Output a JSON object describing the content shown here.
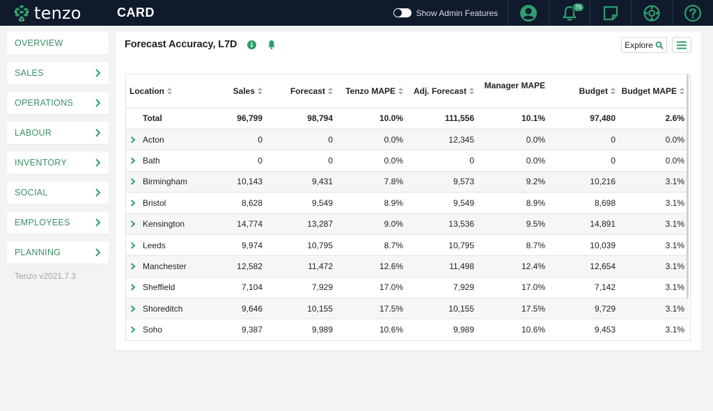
{
  "app": {
    "logo_text": "tenzo",
    "page_title": "CARD"
  },
  "topbar": {
    "admin_toggle_label": "Show Admin Features",
    "notifications_count": "76",
    "icons": [
      "user-icon",
      "bell-icon",
      "note-icon",
      "settings-icon",
      "help-icon"
    ]
  },
  "sidebar": {
    "items": [
      {
        "label": "OVERVIEW",
        "chevron": false
      },
      {
        "label": "SALES",
        "chevron": true
      },
      {
        "label": "OPERATIONS",
        "chevron": true
      },
      {
        "label": "LABOUR",
        "chevron": true
      },
      {
        "label": "INVENTORY",
        "chevron": true
      },
      {
        "label": "SOCIAL",
        "chevron": true
      },
      {
        "label": "EMPLOYEES",
        "chevron": true
      },
      {
        "label": "PLANNING",
        "chevron": true
      }
    ],
    "version": "Tenzo v2021.7.3"
  },
  "card": {
    "title": "Forecast Accuracy, L7D",
    "explore_label": "Explore"
  },
  "table": {
    "columns": [
      "Location",
      "Sales",
      "Forecast",
      "Tenzo MAPE",
      "Adj. Forecast",
      "Manager MAPE",
      "Budget",
      "Budget MAPE"
    ],
    "total": [
      "Total",
      "96,799",
      "98,794",
      "10.0%",
      "111,556",
      "10.1%",
      "97,480",
      "2.6%"
    ],
    "rows": [
      [
        "Acton",
        "0",
        "0",
        "0.0%",
        "12,345",
        "0.0%",
        "0",
        "0.0%"
      ],
      [
        "Bath",
        "0",
        "0",
        "0.0%",
        "0",
        "0.0%",
        "0",
        "0.0%"
      ],
      [
        "Birmingham",
        "10,143",
        "9,431",
        "7.8%",
        "9,573",
        "9.2%",
        "10,216",
        "3.1%"
      ],
      [
        "Bristol",
        "8,628",
        "9,549",
        "8.9%",
        "9,549",
        "8.9%",
        "8,698",
        "3.1%"
      ],
      [
        "Kensington",
        "14,774",
        "13,287",
        "9.0%",
        "13,536",
        "9.5%",
        "14,891",
        "3.1%"
      ],
      [
        "Leeds",
        "9,974",
        "10,795",
        "8.7%",
        "10,795",
        "8.7%",
        "10,039",
        "3.1%"
      ],
      [
        "Manchester",
        "12,582",
        "11,472",
        "12.6%",
        "11,498",
        "12.4%",
        "12,654",
        "3.1%"
      ],
      [
        "Sheffield",
        "7,104",
        "7,929",
        "17.0%",
        "7,929",
        "17.0%",
        "7,142",
        "3.1%"
      ],
      [
        "Shoreditch",
        "9,646",
        "10,155",
        "17.5%",
        "10,155",
        "17.5%",
        "9,729",
        "3.1%"
      ],
      [
        "Soho",
        "9,387",
        "9,989",
        "10.6%",
        "9,989",
        "10.6%",
        "9,453",
        "3.1%"
      ]
    ]
  },
  "colors": {
    "topbar": "#0f1a2c",
    "accent_green": "#2e9e6b",
    "sidebar_text": "#3a8f66"
  }
}
